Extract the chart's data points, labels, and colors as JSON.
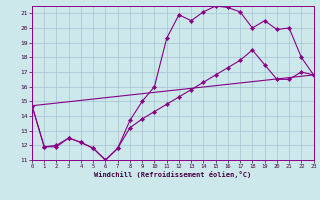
{
  "xlabel": "Windchill (Refroidissement éolien,°C)",
  "bg_color": "#cce8ea",
  "line_color": "#880088",
  "grid_color": "#99bbcc",
  "curve1_x": [
    0,
    1,
    2,
    3,
    4,
    5,
    6,
    7,
    8,
    9,
    10,
    11,
    12,
    13,
    14,
    15,
    16,
    17,
    18,
    19,
    20,
    21,
    22,
    23
  ],
  "curve1_y": [
    14.7,
    11.9,
    11.9,
    12.5,
    12.2,
    11.8,
    11.0,
    11.8,
    13.7,
    15.0,
    16.0,
    19.3,
    20.9,
    20.5,
    21.1,
    21.5,
    21.4,
    21.1,
    20.0,
    20.5,
    19.9,
    20.0,
    18.0,
    16.8
  ],
  "curve2_x": [
    0,
    1,
    2,
    3,
    4,
    5,
    6,
    7,
    8,
    9,
    10,
    11,
    12,
    13,
    14,
    15,
    16,
    17,
    18,
    19,
    20,
    21,
    22,
    23
  ],
  "curve2_y": [
    14.7,
    11.9,
    12.0,
    12.5,
    12.2,
    11.8,
    11.0,
    11.8,
    13.2,
    13.8,
    14.3,
    14.8,
    15.3,
    15.8,
    16.3,
    16.8,
    17.3,
    17.8,
    18.5,
    17.5,
    16.5,
    16.5,
    17.0,
    16.8
  ],
  "curve3_x": [
    0,
    23
  ],
  "curve3_y": [
    14.7,
    16.8
  ],
  "xticks": [
    0,
    1,
    2,
    3,
    4,
    5,
    6,
    7,
    8,
    9,
    10,
    11,
    12,
    13,
    14,
    15,
    16,
    17,
    18,
    19,
    20,
    21,
    22,
    23
  ],
  "yticks": [
    11,
    12,
    13,
    14,
    15,
    16,
    17,
    18,
    19,
    20,
    21
  ],
  "xlim": [
    0,
    23
  ],
  "ylim": [
    11,
    21.5
  ]
}
